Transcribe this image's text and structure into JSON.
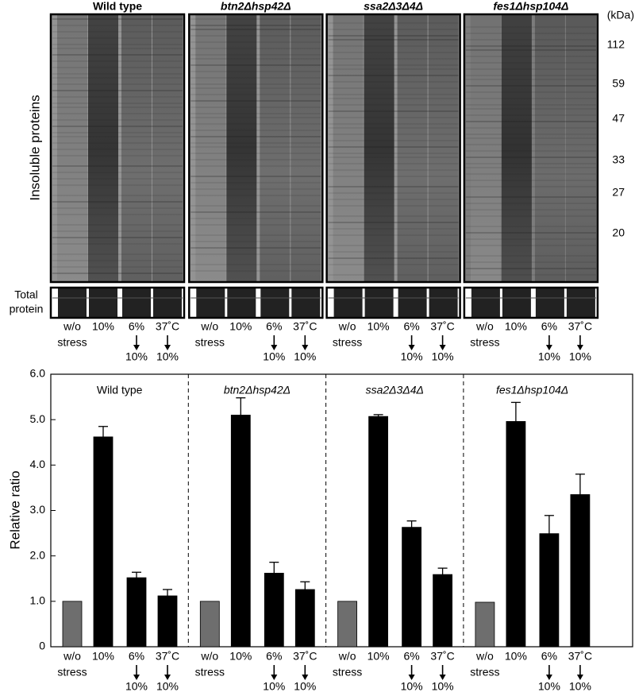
{
  "gel": {
    "ylabel": "Insoluble proteins",
    "total_label": [
      "Total",
      "protein"
    ],
    "unit": "(kDa)",
    "markers": [
      112,
      59,
      47,
      33,
      27,
      20
    ]
  },
  "chart_data": {
    "type": "bar",
    "ylabel": "Relative ratio",
    "ylim": [
      0,
      6
    ],
    "yticks": [
      0,
      {
        "value": 1,
        "label": "1.0"
      },
      {
        "value": 2,
        "label": "2.0"
      },
      {
        "value": 3,
        "label": "3.0"
      },
      {
        "value": 4,
        "label": "4.0"
      },
      {
        "value": 5,
        "label": "5.0"
      },
      {
        "value": 6,
        "label": "6.0"
      }
    ],
    "lanes": [
      {
        "line1": "w/o",
        "line2": "stress"
      },
      {
        "line1": "10%"
      },
      {
        "line1": "6%",
        "line2": "10%",
        "arrow": true
      },
      {
        "line1": "37˚C",
        "line2": "10%",
        "arrow": true
      }
    ],
    "lane_colors": [
      "#6e6e6e",
      "#000000",
      "#000000",
      "#000000"
    ],
    "groups": [
      {
        "name": "Wild type",
        "italic": false,
        "values": [
          1.0,
          4.62,
          1.52,
          1.12
        ],
        "errors": [
          null,
          0.23,
          0.12,
          0.14
        ]
      },
      {
        "name": "btn2Δhsp42Δ",
        "italic": true,
        "values": [
          1.0,
          5.1,
          1.62,
          1.26
        ],
        "errors": [
          null,
          0.38,
          0.24,
          0.17
        ]
      },
      {
        "name": "ssa2Δ3Δ4Δ",
        "italic": true,
        "values": [
          1.0,
          5.07,
          2.63,
          1.59
        ],
        "errors": [
          null,
          0.04,
          0.14,
          0.14
        ]
      },
      {
        "name": "fes1Δhsp104Δ",
        "italic": true,
        "values": [
          0.98,
          4.96,
          2.49,
          3.35
        ],
        "errors": [
          null,
          0.42,
          0.4,
          0.45
        ]
      }
    ]
  }
}
